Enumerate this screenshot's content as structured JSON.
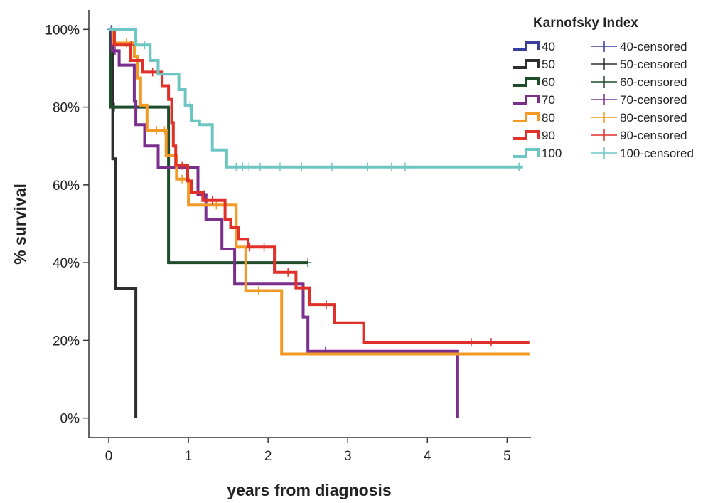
{
  "chart_data": {
    "type": "line",
    "subtype": "kaplan-meier step",
    "title": "",
    "xlabel": "years from diagnosis",
    "ylabel": "% survival",
    "xlim": [
      -0.25,
      5.3
    ],
    "ylim": [
      -5,
      105
    ],
    "x_ticks": [
      0,
      1,
      2,
      3,
      4,
      5
    ],
    "y_ticks": [
      0,
      20,
      40,
      60,
      80,
      100
    ],
    "y_tick_labels": [
      "0%",
      "20%",
      "40%",
      "60%",
      "80%",
      "100%"
    ],
    "grid": false,
    "legend": {
      "title": "Karnofsky Index",
      "position": "top-right"
    },
    "series": [
      {
        "name": "40",
        "censored_name": "40-censored",
        "color": "#3b3f9c",
        "points": [
          [
            0,
            100
          ],
          [
            0.03,
            100
          ]
        ],
        "censored": [
          [
            0.03,
            100
          ]
        ]
      },
      {
        "name": "50",
        "censored_name": "50-censored",
        "color": "#2e2e2e",
        "points": [
          [
            0,
            100
          ],
          [
            0.05,
            100
          ],
          [
            0.05,
            66.7
          ],
          [
            0.08,
            66.7
          ],
          [
            0.08,
            33.3
          ],
          [
            0.34,
            33.3
          ],
          [
            0.34,
            0
          ]
        ],
        "censored": []
      },
      {
        "name": "60",
        "censored_name": "60-censored",
        "color": "#1f4d2c",
        "points": [
          [
            0,
            100
          ],
          [
            0.02,
            100
          ],
          [
            0.02,
            80
          ],
          [
            0.75,
            80
          ],
          [
            0.75,
            40
          ],
          [
            2.5,
            40
          ]
        ],
        "censored": [
          [
            0.07,
            80
          ],
          [
            2.5,
            40
          ]
        ]
      },
      {
        "name": "70",
        "censored_name": "70-censored",
        "color": "#7b2f8c",
        "points": [
          [
            0,
            100
          ],
          [
            0.04,
            100
          ],
          [
            0.04,
            94.5
          ],
          [
            0.13,
            94.5
          ],
          [
            0.13,
            90.8
          ],
          [
            0.32,
            90.8
          ],
          [
            0.32,
            81.5
          ],
          [
            0.34,
            81.5
          ],
          [
            0.34,
            75.5
          ],
          [
            0.45,
            75.5
          ],
          [
            0.45,
            70
          ],
          [
            0.62,
            70
          ],
          [
            0.62,
            64.5
          ],
          [
            1.12,
            64.5
          ],
          [
            1.12,
            57.5
          ],
          [
            1.22,
            57.5
          ],
          [
            1.22,
            51
          ],
          [
            1.42,
            51
          ],
          [
            1.42,
            43.5
          ],
          [
            1.58,
            43.5
          ],
          [
            1.58,
            34.5
          ],
          [
            2.44,
            34.5
          ],
          [
            2.44,
            26
          ],
          [
            2.5,
            26
          ],
          [
            2.5,
            17.2
          ],
          [
            4.38,
            17.2
          ],
          [
            4.38,
            0
          ]
        ],
        "censored": [
          [
            0.08,
            94.5
          ],
          [
            1.2,
            57.5
          ],
          [
            2.72,
            17.2
          ]
        ]
      },
      {
        "name": "80",
        "censored_name": "80-censored",
        "color": "#f39a26",
        "points": [
          [
            0,
            100
          ],
          [
            0.06,
            100
          ],
          [
            0.06,
            96.5
          ],
          [
            0.32,
            96.5
          ],
          [
            0.32,
            93
          ],
          [
            0.36,
            93
          ],
          [
            0.36,
            87.5
          ],
          [
            0.4,
            87.5
          ],
          [
            0.4,
            80.5
          ],
          [
            0.48,
            80.5
          ],
          [
            0.48,
            74
          ],
          [
            0.72,
            74
          ],
          [
            0.72,
            67.5
          ],
          [
            0.85,
            67.5
          ],
          [
            0.85,
            61.5
          ],
          [
            1.0,
            61.5
          ],
          [
            1.0,
            54.8
          ],
          [
            1.25,
            54.8
          ],
          [
            1.25,
            54.8
          ],
          [
            1.6,
            54.8
          ],
          [
            1.6,
            44
          ],
          [
            1.72,
            44
          ],
          [
            1.72,
            32.8
          ],
          [
            2.17,
            32.8
          ],
          [
            2.17,
            16.5
          ],
          [
            5.28,
            16.5
          ]
        ],
        "censored": [
          [
            0.22,
            96.5
          ],
          [
            0.6,
            74
          ],
          [
            0.7,
            74
          ],
          [
            0.92,
            61.5
          ],
          [
            1.35,
            54.8
          ],
          [
            1.45,
            54.8
          ],
          [
            1.88,
            32.8
          ]
        ]
      },
      {
        "name": "90",
        "censored_name": "90-censored",
        "color": "#e0302a",
        "points": [
          [
            0,
            100
          ],
          [
            0.07,
            100
          ],
          [
            0.07,
            96
          ],
          [
            0.27,
            96
          ],
          [
            0.27,
            92
          ],
          [
            0.42,
            92
          ],
          [
            0.42,
            89
          ],
          [
            0.67,
            89
          ],
          [
            0.67,
            85.5
          ],
          [
            0.75,
            85.5
          ],
          [
            0.75,
            82
          ],
          [
            0.79,
            82
          ],
          [
            0.79,
            76
          ],
          [
            0.81,
            76
          ],
          [
            0.81,
            70
          ],
          [
            0.84,
            70
          ],
          [
            0.84,
            65
          ],
          [
            0.99,
            65
          ],
          [
            0.99,
            61
          ],
          [
            1.04,
            61
          ],
          [
            1.04,
            58
          ],
          [
            1.18,
            58
          ],
          [
            1.18,
            56
          ],
          [
            1.46,
            56
          ],
          [
            1.46,
            51
          ],
          [
            1.53,
            51
          ],
          [
            1.53,
            49
          ],
          [
            1.63,
            49
          ],
          [
            1.63,
            46
          ],
          [
            1.75,
            46
          ],
          [
            1.75,
            44
          ],
          [
            2.08,
            44
          ],
          [
            2.08,
            37.5
          ],
          [
            2.35,
            37.5
          ],
          [
            2.35,
            33.5
          ],
          [
            2.52,
            33.5
          ],
          [
            2.52,
            29.2
          ],
          [
            2.83,
            29.2
          ],
          [
            2.83,
            24.5
          ],
          [
            3.2,
            24.5
          ],
          [
            3.2,
            19.5
          ],
          [
            5.28,
            19.5
          ]
        ],
        "censored": [
          [
            0.28,
            96
          ],
          [
            0.55,
            89
          ],
          [
            0.92,
            65
          ],
          [
            1.3,
            56
          ],
          [
            1.77,
            44
          ],
          [
            1.95,
            44
          ],
          [
            2.25,
            37.5
          ],
          [
            2.45,
            33.5
          ],
          [
            2.73,
            29.2
          ],
          [
            4.55,
            19.5
          ],
          [
            4.8,
            19.5
          ]
        ]
      },
      {
        "name": "100",
        "censored_name": "100-censored",
        "color": "#6ec6c2",
        "points": [
          [
            0,
            100
          ],
          [
            0.34,
            100
          ],
          [
            0.34,
            96
          ],
          [
            0.52,
            96
          ],
          [
            0.52,
            92
          ],
          [
            0.62,
            92
          ],
          [
            0.62,
            88.5
          ],
          [
            0.88,
            88.5
          ],
          [
            0.88,
            84.5
          ],
          [
            0.96,
            84.5
          ],
          [
            0.96,
            80.5
          ],
          [
            1.04,
            80.5
          ],
          [
            1.04,
            76.5
          ],
          [
            1.14,
            76.5
          ],
          [
            1.14,
            75.5
          ],
          [
            1.3,
            75.5
          ],
          [
            1.3,
            69
          ],
          [
            1.48,
            69
          ],
          [
            1.48,
            64.6
          ],
          [
            5.2,
            64.6
          ]
        ],
        "censored": [
          [
            0.04,
            100
          ],
          [
            0.45,
            96
          ],
          [
            1.02,
            80.5
          ],
          [
            1.6,
            64.6
          ],
          [
            1.68,
            64.6
          ],
          [
            1.76,
            64.6
          ],
          [
            1.9,
            64.6
          ],
          [
            2.15,
            64.6
          ],
          [
            2.42,
            64.6
          ],
          [
            2.8,
            64.6
          ],
          [
            3.25,
            64.6
          ],
          [
            3.55,
            64.6
          ],
          [
            3.72,
            64.6
          ],
          [
            5.15,
            64.6
          ]
        ]
      }
    ]
  }
}
